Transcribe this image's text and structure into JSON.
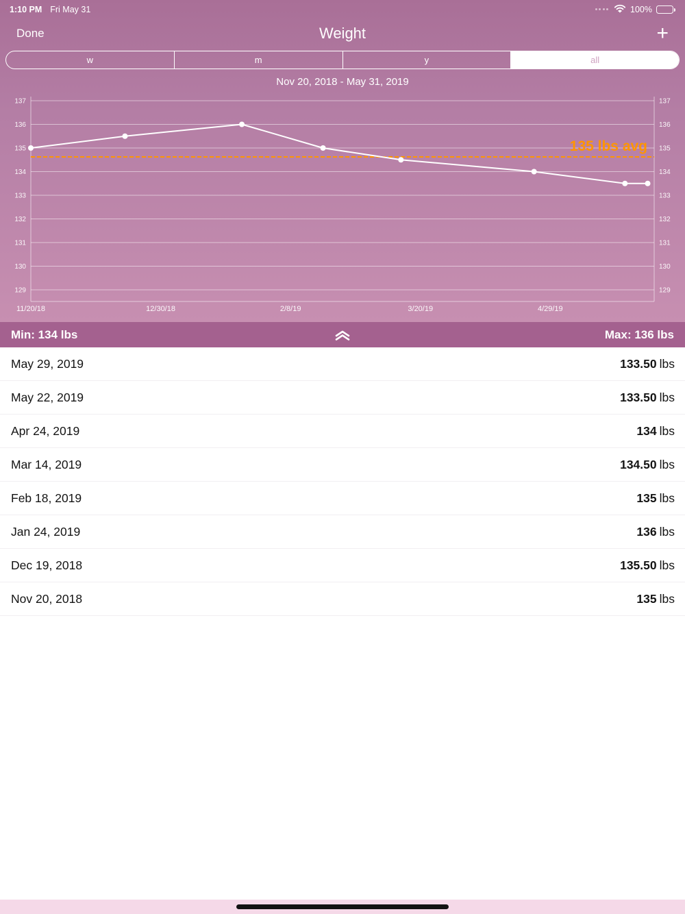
{
  "status_bar": {
    "time": "1:10 PM",
    "date": "Fri May 31",
    "battery_percent": "100%"
  },
  "nav": {
    "done_label": "Done",
    "title": "Weight",
    "add_label": "+"
  },
  "segments": [
    {
      "label": "w",
      "selected": false
    },
    {
      "label": "m",
      "selected": false
    },
    {
      "label": "y",
      "selected": false
    },
    {
      "label": "all",
      "selected": true
    }
  ],
  "date_range": "Nov 20, 2018 - May 31, 2019",
  "chart_data": {
    "type": "line",
    "title": "Weight over time",
    "ylim": [
      129,
      137
    ],
    "y_ticks": [
      137,
      136,
      135,
      134,
      133,
      132,
      131,
      130,
      129
    ],
    "x_range_days": [
      0,
      192
    ],
    "x_ticks": [
      {
        "day": 0,
        "label": "11/20/18"
      },
      {
        "day": 40,
        "label": "12/30/18"
      },
      {
        "day": 80,
        "label": "2/8/19"
      },
      {
        "day": 120,
        "label": "3/20/19"
      },
      {
        "day": 160,
        "label": "4/29/19"
      }
    ],
    "points": [
      {
        "date": "Nov 20, 2018",
        "day": 0,
        "value": 135
      },
      {
        "date": "Dec 19, 2018",
        "day": 29,
        "value": 135.5
      },
      {
        "date": "Jan 24, 2019",
        "day": 65,
        "value": 136
      },
      {
        "date": "Feb 18, 2019",
        "day": 90,
        "value": 135
      },
      {
        "date": "Mar 14, 2019",
        "day": 114,
        "value": 134.5
      },
      {
        "date": "Apr 24, 2019",
        "day": 155,
        "value": 134
      },
      {
        "date": "May 22, 2019",
        "day": 183,
        "value": 133.5
      },
      {
        "date": "May 29, 2019",
        "day": 190,
        "value": 133.5
      }
    ],
    "avg_line": {
      "value": 134.625,
      "label": "135 lbs avg",
      "color": "#ff9500"
    },
    "line_color": "#ffffff",
    "legend": "none",
    "grid": "horizontal"
  },
  "summary": {
    "min_label": "Min: 134 lbs",
    "max_label": "Max: 136 lbs"
  },
  "entries": [
    {
      "date": "May 29, 2019",
      "value": "133.50",
      "unit": "lbs"
    },
    {
      "date": "May 22, 2019",
      "value": "133.50",
      "unit": "lbs"
    },
    {
      "date": "Apr 24, 2019",
      "value": "134",
      "unit": "lbs"
    },
    {
      "date": "Mar 14, 2019",
      "value": "134.50",
      "unit": "lbs"
    },
    {
      "date": "Feb 18, 2019",
      "value": "135",
      "unit": "lbs"
    },
    {
      "date": "Jan 24, 2019",
      "value": "136",
      "unit": "lbs"
    },
    {
      "date": "Dec 19, 2018",
      "value": "135.50",
      "unit": "lbs"
    },
    {
      "date": "Nov 20, 2018",
      "value": "135",
      "unit": "lbs"
    }
  ]
}
